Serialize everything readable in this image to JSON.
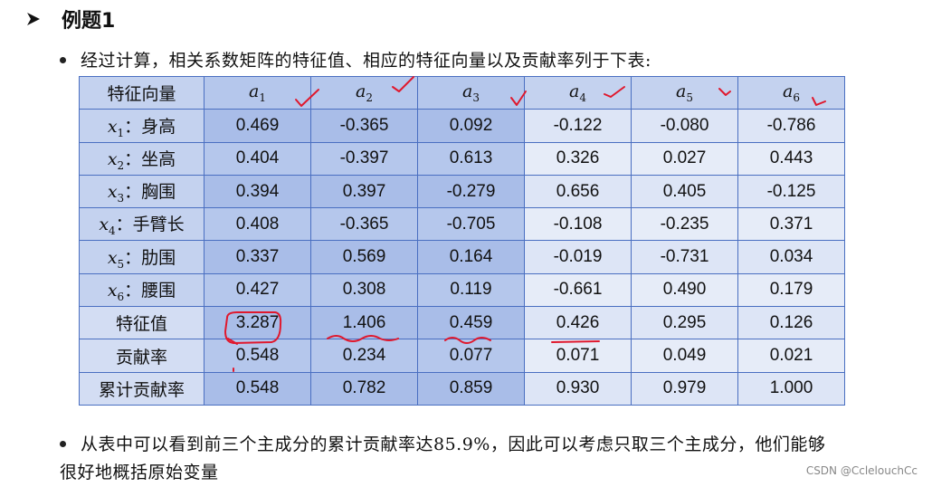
{
  "title": "例题1",
  "intro_text": "经过计算，相关系数矩阵的特征值、相应的特征向量以及贡献率列于下表:",
  "table": {
    "corner_header": "特征向量",
    "columns": [
      {
        "symbol": "a",
        "sub": "1"
      },
      {
        "symbol": "a",
        "sub": "2"
      },
      {
        "symbol": "a",
        "sub": "3"
      },
      {
        "symbol": "a",
        "sub": "4"
      },
      {
        "symbol": "a",
        "sub": "5"
      },
      {
        "symbol": "a",
        "sub": "6"
      }
    ],
    "rows": [
      {
        "symbol": "x",
        "sub": "1",
        "label": "：身高",
        "values": [
          "0.469",
          "-0.365",
          "0.092",
          "-0.122",
          "-0.080",
          "-0.786"
        ]
      },
      {
        "symbol": "x",
        "sub": "2",
        "label": "：坐高",
        "values": [
          "0.404",
          "-0.397",
          "0.613",
          "0.326",
          "0.027",
          "0.443"
        ]
      },
      {
        "symbol": "x",
        "sub": "3",
        "label": "：胸围",
        "values": [
          "0.394",
          "0.397",
          "-0.279",
          "0.656",
          "0.405",
          "-0.125"
        ]
      },
      {
        "symbol": "x",
        "sub": "4",
        "label": "：手臂长",
        "values": [
          "0.408",
          "-0.365",
          "-0.705",
          "-0.108",
          "-0.235",
          "0.371"
        ]
      },
      {
        "symbol": "x",
        "sub": "5",
        "label": "：肋围",
        "values": [
          "0.337",
          "0.569",
          "0.164",
          "-0.019",
          "-0.731",
          "0.034"
        ]
      },
      {
        "symbol": "x",
        "sub": "6",
        "label": "：腰围",
        "values": [
          "0.427",
          "0.308",
          "0.119",
          "-0.661",
          "0.490",
          "0.179"
        ]
      },
      {
        "label": "特征值",
        "values": [
          "3.287",
          "1.406",
          "0.459",
          "0.426",
          "0.295",
          "0.126"
        ]
      },
      {
        "label": "贡献率",
        "values": [
          "0.548",
          "0.234",
          "0.077",
          "0.071",
          "0.049",
          "0.021"
        ]
      },
      {
        "label": "累计贡献率",
        "values": [
          "0.548",
          "0.782",
          "0.859",
          "0.930",
          "0.979",
          "1.000"
        ]
      }
    ]
  },
  "conclusion_line1": "从表中可以看到前三个主成分的累计贡献率达85.9%，因此可以考虑只取三个主成分，他们能够",
  "conclusion_line2": "很好地概括原始变量",
  "watermark": "CSDN @CclelouchCc",
  "colors": {
    "table_border": "#4a6fc1",
    "header_fill": "#c4d2ef",
    "annotation_ink": "#e0182d"
  }
}
